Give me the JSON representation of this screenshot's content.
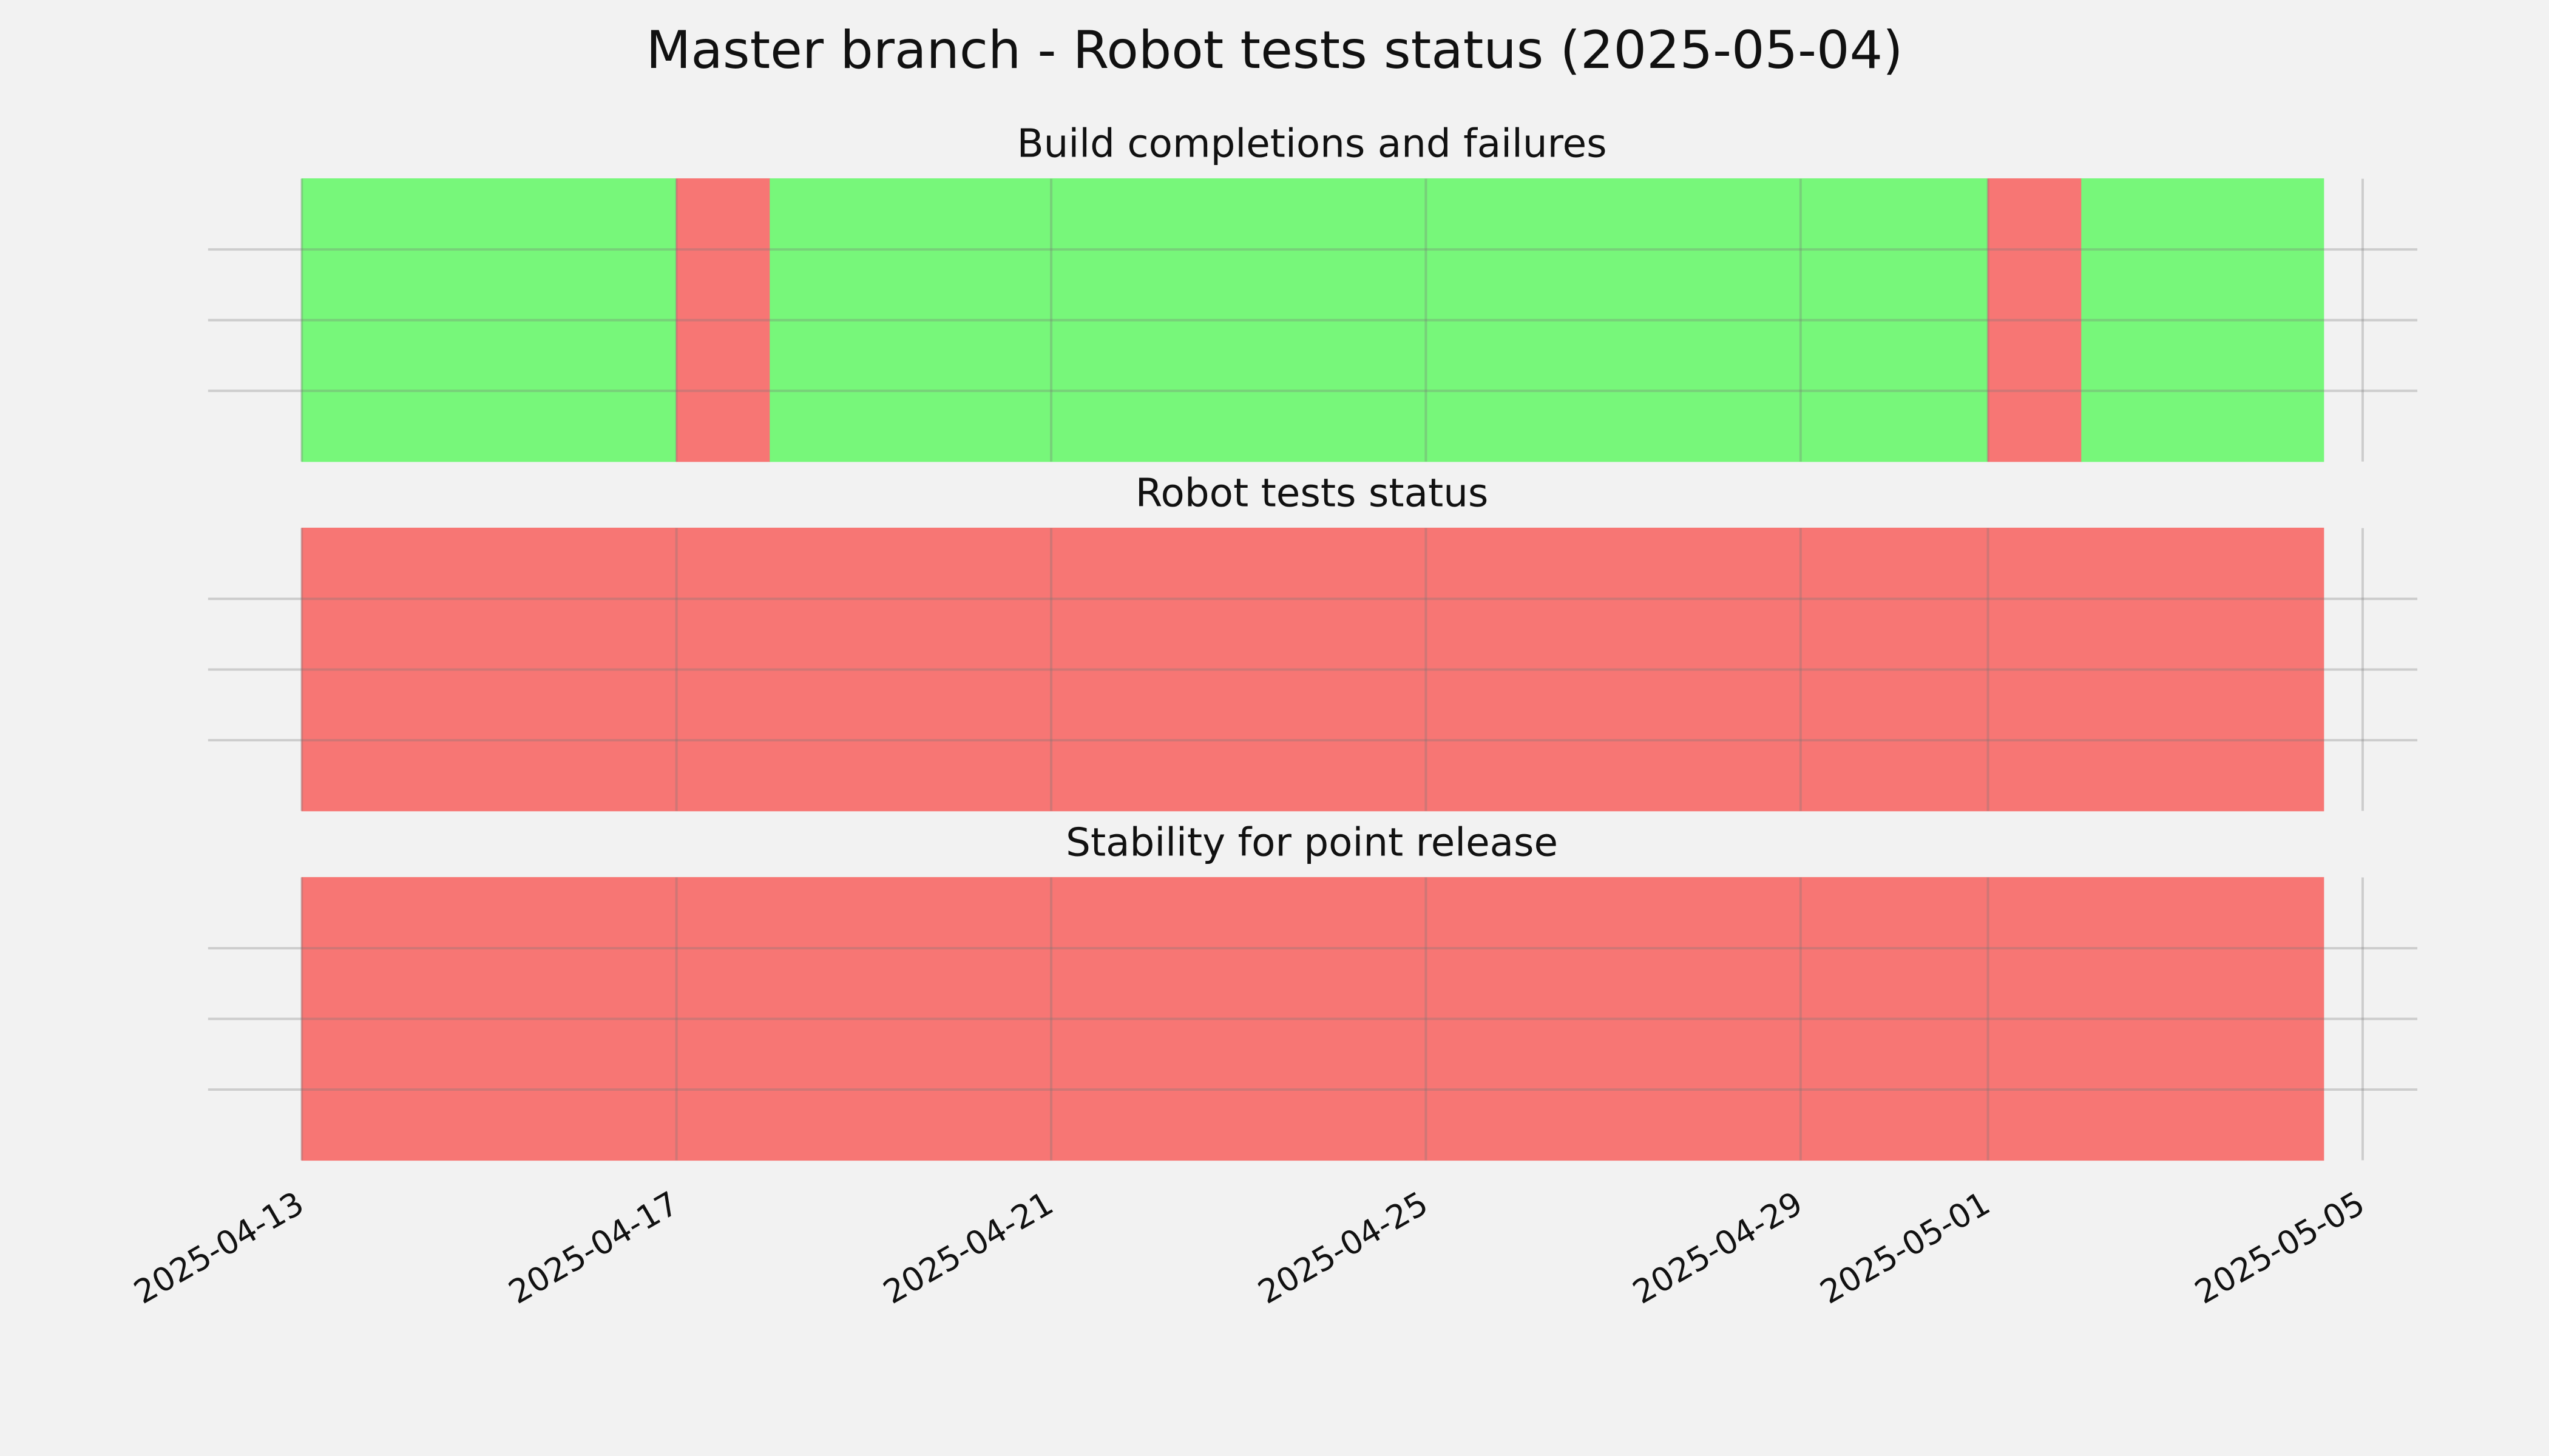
{
  "chart_data": {
    "type": "timeline",
    "title": "Master branch - Robot tests status (2025-05-04)",
    "xlim": [
      "2025-04-12T00:00Z",
      "2025-05-05T14:00Z"
    ],
    "xticks": [
      "2025-04-13",
      "2025-04-17",
      "2025-04-21",
      "2025-04-25",
      "2025-04-29",
      "2025-05-01",
      "2025-05-05"
    ],
    "ylim": [
      0,
      1
    ],
    "yticks": [
      0.25,
      0.5,
      0.75
    ],
    "grid": true,
    "panels": [
      {
        "title": "Build completions and failures",
        "segments": [
          {
            "start": "2025-04-13",
            "end": "2025-04-17",
            "color": "#77f77a"
          },
          {
            "start": "2025-04-17",
            "end": "2025-04-18",
            "color": "#f77674"
          },
          {
            "start": "2025-04-18",
            "end": "2025-05-01",
            "color": "#77f77a"
          },
          {
            "start": "2025-05-01",
            "end": "2025-05-02",
            "color": "#f77674"
          },
          {
            "start": "2025-05-02",
            "end": "2025-05-04T14:00Z",
            "color": "#77f77a"
          }
        ]
      },
      {
        "title": "Robot tests status",
        "segments": [
          {
            "start": "2025-04-13",
            "end": "2025-05-04T14:00Z",
            "color": "#f77674"
          }
        ]
      },
      {
        "title": "Stability for point release",
        "segments": [
          {
            "start": "2025-04-13",
            "end": "2025-05-04T14:00Z",
            "color": "#f77674"
          }
        ]
      }
    ]
  }
}
